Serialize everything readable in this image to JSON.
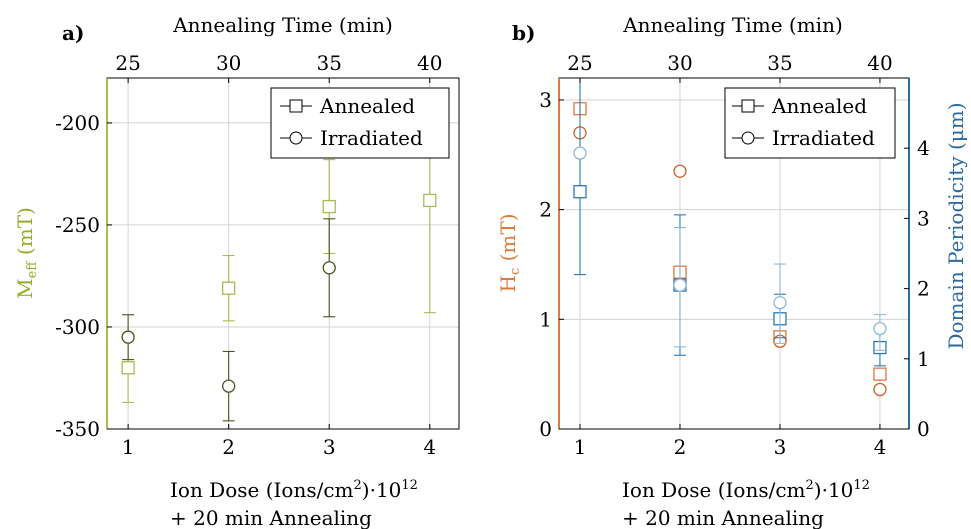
{
  "chart_data": [
    {
      "type": "scatter",
      "panel_label": "a)",
      "top_axis_label": "Annealing Time (min)",
      "top_ticks": [
        "25",
        "30",
        "35",
        "40"
      ],
      "xlabel_line1": "Ion Dose (Ions/cm",
      "xlabel_sup1": "2",
      "xlabel_mid": ")·10",
      "xlabel_sup2": "12",
      "xlabel_line2": "+ 20 min Annealing",
      "x_ticks": [
        "1",
        "2",
        "3",
        "4"
      ],
      "ylabel_main": "M",
      "ylabel_sub": "eff",
      "ylabel_unit": " (mT)",
      "ylabel_color": "#9aaa2a",
      "ylim": [
        -350,
        -178
      ],
      "y_ticks": [
        -350,
        -300,
        -250,
        -200
      ],
      "y_tick_labels": [
        "-350",
        "-300",
        "-250",
        "-200"
      ],
      "grid": true,
      "legend_position": "top-right",
      "legend": [
        "Annealed",
        "Irradiated"
      ],
      "series": [
        {
          "name": "Annealed",
          "marker": "square",
          "color": "#a8bb55",
          "points": [
            {
              "x": 1,
              "y": -320,
              "err": 17
            },
            {
              "x": 2,
              "y": -281,
              "err": 16
            },
            {
              "x": 3,
              "y": -241,
              "err": 23
            },
            {
              "x": 4,
              "y": -238,
              "err": 55
            }
          ]
        },
        {
          "name": "Irradiated",
          "marker": "circle",
          "color": "#4a5520",
          "points": [
            {
              "x": 1,
              "y": -305,
              "err": 11
            },
            {
              "x": 2,
              "y": -329,
              "err": 17
            },
            {
              "x": 3,
              "y": -271,
              "err": 24
            }
          ]
        }
      ]
    },
    {
      "type": "scatter",
      "panel_label": "b)",
      "top_axis_label": "Annealing Time (min)",
      "top_ticks": [
        "25",
        "30",
        "35",
        "40"
      ],
      "xlabel_line1": "Ion Dose (Ions/cm",
      "xlabel_sup1": "2",
      "xlabel_mid": ")·10",
      "xlabel_sup2": "12",
      "xlabel_line2": "+ 20 min Annealing",
      "x_ticks": [
        "1",
        "2",
        "3",
        "4"
      ],
      "ylabel_main": "H",
      "ylabel_sub": "c",
      "ylabel_unit": " (mT)",
      "ylabel_color": "#e07a3a",
      "ylim": [
        0,
        3.2
      ],
      "y_ticks": [
        0,
        1,
        2,
        3
      ],
      "y_tick_labels": [
        "0",
        "1",
        "2",
        "3"
      ],
      "y2label": "Domain Periodicity (μm)",
      "y2label_color": "#2a6aa0",
      "y2lim": [
        0,
        5.0
      ],
      "y2_ticks": [
        0,
        1,
        2,
        3,
        4
      ],
      "y2_tick_labels": [
        "0",
        "1",
        "2",
        "3",
        "4"
      ],
      "grid": true,
      "legend_position": "top-right",
      "legend": [
        "Annealed",
        "Irradiated"
      ],
      "series": [
        {
          "name": "Annealed",
          "axis": "left",
          "marker": "square",
          "color": "#e07a3a",
          "points": [
            {
              "x": 1,
              "y": 2.92
            },
            {
              "x": 2,
              "y": 1.43
            },
            {
              "x": 3,
              "y": 0.84
            },
            {
              "x": 4,
              "y": 0.5
            }
          ]
        },
        {
          "name": "Irradiated",
          "axis": "left",
          "marker": "circle",
          "color": "#c8602a",
          "points": [
            {
              "x": 1,
              "y": 2.7
            },
            {
              "x": 2,
              "y": 2.35
            },
            {
              "x": 3,
              "y": 0.8
            },
            {
              "x": 4,
              "y": 0.36
            }
          ]
        },
        {
          "name": "Annealed",
          "axis": "right",
          "marker": "square",
          "color": "#2a78b8",
          "points": [
            {
              "x": 1,
              "y": 3.38,
              "lo": 2.2,
              "hi": 5.2
            },
            {
              "x": 2,
              "y": 2.05,
              "lo": 1.05,
              "hi": 3.05
            },
            {
              "x": 3,
              "y": 1.57,
              "lo": 1.3,
              "hi": 1.92
            },
            {
              "x": 4,
              "y": 1.16,
              "lo": 0.9,
              "hi": 1.42
            }
          ]
        },
        {
          "name": "Irradiated",
          "axis": "right",
          "marker": "circle",
          "color": "#8ab8dc",
          "points": [
            {
              "x": 1,
              "y": 3.93
            },
            {
              "x": 2,
              "y": 2.05,
              "lo": 1.17,
              "hi": 2.87
            },
            {
              "x": 3,
              "y": 1.8,
              "lo": 1.22,
              "hi": 2.35
            },
            {
              "x": 4,
              "y": 1.43,
              "lo": 1.12,
              "hi": 1.63
            }
          ]
        }
      ]
    }
  ]
}
